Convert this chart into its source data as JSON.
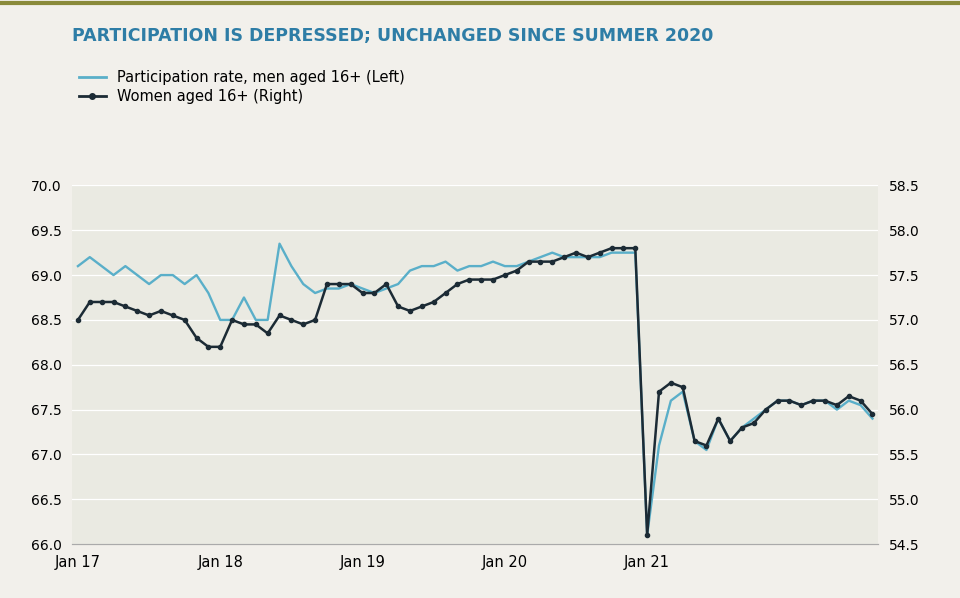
{
  "title": "PARTICIPATION IS DEPRESSED; UNCHANGED SINCE SUMMER 2020",
  "title_color": "#2e7da6",
  "legend_men": "Participation rate, men aged 16+ (Left)",
  "legend_women": "Women aged 16+ (Right)",
  "background_color": "#f2f0eb",
  "plot_bg_color": "#eaeae2",
  "men_color": "#5aafc9",
  "women_color": "#1c2b35",
  "men_lw": 1.7,
  "women_lw": 1.8,
  "marker_size": 3.0,
  "ylim_left": [
    66.0,
    70.0
  ],
  "ylim_right": [
    54.5,
    58.5
  ],
  "yticks_left": [
    66.0,
    66.5,
    67.0,
    67.5,
    68.0,
    68.5,
    69.0,
    69.5,
    70.0
  ],
  "yticks_right": [
    54.5,
    55.0,
    55.5,
    56.0,
    56.5,
    57.0,
    57.5,
    58.0,
    58.5
  ],
  "x_labels": [
    "Jan 17",
    "Jan 18",
    "Jan 19",
    "Jan 20",
    "Jan 21"
  ],
  "x_tick_months": [
    0,
    12,
    24,
    36,
    48
  ],
  "men_data": [
    69.1,
    69.2,
    69.1,
    69.0,
    69.1,
    69.0,
    68.9,
    69.0,
    69.0,
    68.9,
    69.0,
    68.8,
    68.5,
    68.5,
    68.75,
    68.5,
    68.5,
    69.35,
    69.1,
    68.9,
    68.8,
    68.85,
    68.85,
    68.9,
    68.85,
    68.8,
    68.85,
    68.9,
    69.05,
    69.1,
    69.1,
    69.15,
    69.05,
    69.1,
    69.1,
    69.15,
    69.1,
    69.1,
    69.15,
    69.2,
    69.25,
    69.2,
    69.2,
    69.2,
    69.2,
    69.25,
    69.25,
    69.25,
    66.1,
    67.1,
    67.6,
    67.7,
    67.15,
    67.05,
    67.4,
    67.15,
    67.3,
    67.4,
    67.5,
    67.6,
    67.6,
    67.55,
    67.6,
    67.6,
    67.5,
    67.6,
    67.55,
    67.4
  ],
  "women_data": [
    57.0,
    57.2,
    57.2,
    57.2,
    57.15,
    57.1,
    57.05,
    57.1,
    57.05,
    57.0,
    56.8,
    56.7,
    56.7,
    57.0,
    56.95,
    56.95,
    56.85,
    57.05,
    57.0,
    56.95,
    57.0,
    57.4,
    57.4,
    57.4,
    57.3,
    57.3,
    57.4,
    57.15,
    57.1,
    57.15,
    57.2,
    57.3,
    57.4,
    57.45,
    57.45,
    57.45,
    57.5,
    57.55,
    57.65,
    57.65,
    57.65,
    57.7,
    57.75,
    57.7,
    57.75,
    57.8,
    57.8,
    57.8,
    54.6,
    56.2,
    56.3,
    56.25,
    55.65,
    55.6,
    55.9,
    55.65,
    55.8,
    55.85,
    56.0,
    56.1,
    56.1,
    56.05,
    56.1,
    56.1,
    56.05,
    56.15,
    56.1,
    55.95
  ]
}
